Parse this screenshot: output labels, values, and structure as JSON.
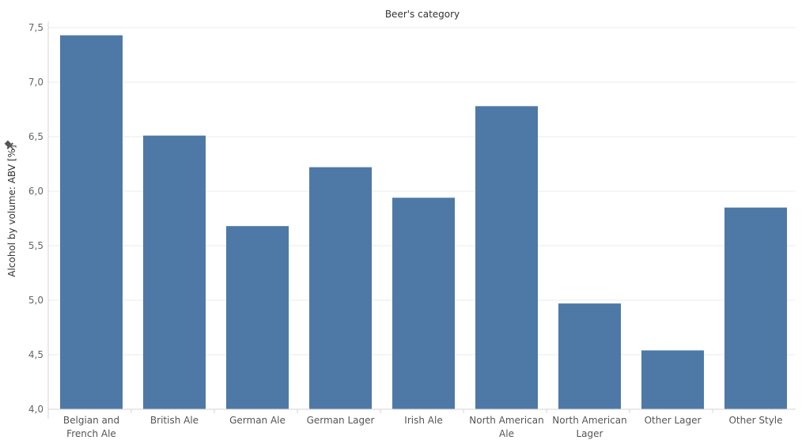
{
  "chart_data": {
    "type": "bar",
    "title": "Beer's category",
    "ylabel": "Alcohol by volume: ABV [%]",
    "xlabel": "",
    "categories": [
      "Belgian and French Ale",
      "British Ale",
      "German Ale",
      "German Lager",
      "Irish Ale",
      "North American Ale",
      "North American Lager",
      "Other Lager",
      "Other Style"
    ],
    "category_lines": [
      [
        "Belgian and",
        "French Ale"
      ],
      [
        "British Ale"
      ],
      [
        "German Ale"
      ],
      [
        "German Lager"
      ],
      [
        "Irish Ale"
      ],
      [
        "North American",
        "Ale"
      ],
      [
        "North American",
        "Lager"
      ],
      [
        "Other Lager"
      ],
      [
        "Other Style"
      ]
    ],
    "values": [
      7.43,
      6.51,
      5.68,
      6.22,
      5.94,
      6.78,
      4.97,
      4.54,
      5.85
    ],
    "ylim": [
      4.0,
      7.5
    ],
    "yticks": [
      4.0,
      4.5,
      5.0,
      5.5,
      6.0,
      6.5,
      7.0,
      7.5
    ],
    "ytick_labels": [
      "4,0",
      "4,5",
      "5,0",
      "5,5",
      "6,0",
      "6,5",
      "7,0",
      "7,5"
    ],
    "grid": true,
    "bar_color": "#4e79a7",
    "grid_color": "#ebebeb",
    "axis_color": "#d4d4d4"
  }
}
